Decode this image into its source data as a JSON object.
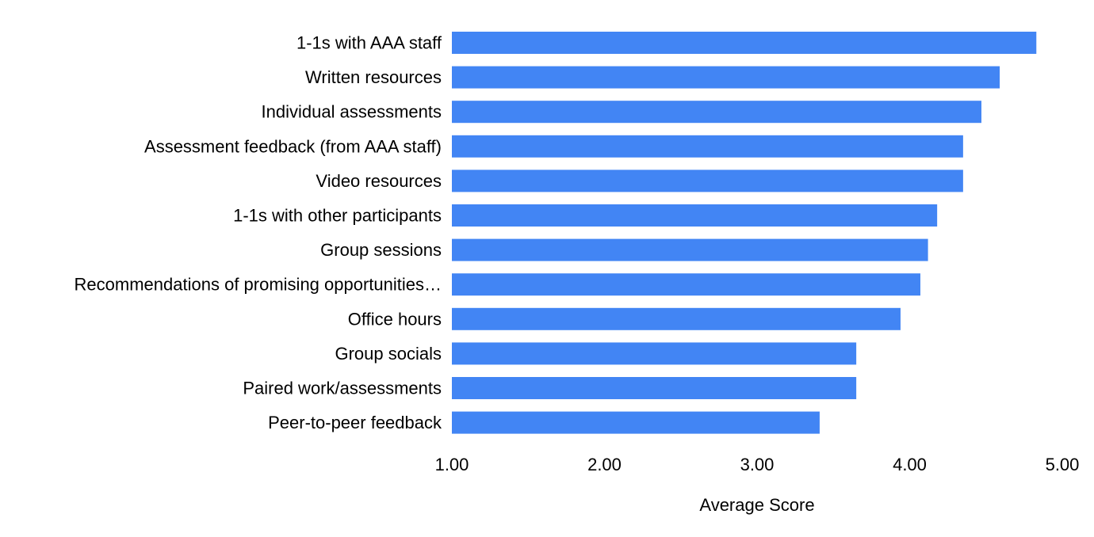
{
  "chart_data": {
    "type": "bar",
    "orientation": "horizontal",
    "title": "",
    "xlabel": "Average Score",
    "ylabel": "",
    "xlim": [
      1.0,
      5.0
    ],
    "ticks": [
      "1.00",
      "2.00",
      "3.00",
      "4.00",
      "5.00"
    ],
    "tick_values": [
      1.0,
      2.0,
      3.0,
      4.0,
      5.0
    ],
    "grid": false,
    "legend": "none",
    "bar_color": "#4285f4",
    "categories": [
      "1-1s with AAA staff",
      "Written resources",
      "Individual assessments",
      "Assessment feedback (from AAA staff)",
      "Video resources",
      "1-1s with other participants",
      "Group sessions",
      "Recommendations of promising opportunities…",
      "Office hours",
      "Group socials",
      "Paired work/assessments",
      "Peer-to-peer feedback"
    ],
    "values": [
      4.83,
      4.59,
      4.47,
      4.35,
      4.35,
      4.18,
      4.12,
      4.07,
      3.94,
      3.65,
      3.65,
      3.41
    ]
  }
}
